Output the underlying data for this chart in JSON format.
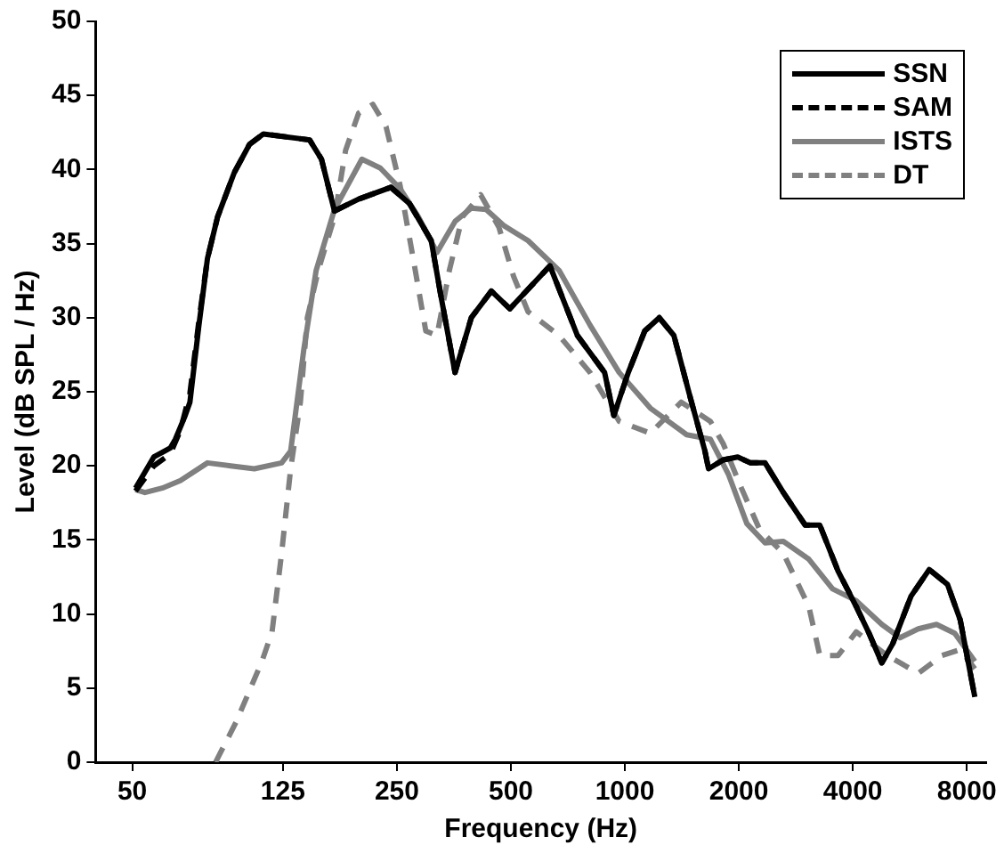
{
  "chart_data": {
    "type": "line",
    "xlabel": "Frequency (Hz)",
    "ylabel": "Level (dB SPL / Hz)",
    "log": "x",
    "xlim": [
      40,
      9000
    ],
    "xticks": [
      50,
      125,
      250,
      500,
      1000,
      2000,
      4000,
      8000
    ],
    "ylim": [
      0,
      50
    ],
    "yticks": [
      0,
      5,
      10,
      15,
      20,
      25,
      30,
      35,
      40,
      45,
      50
    ],
    "grid": false,
    "legend": "top right",
    "marker": "none",
    "series": [
      {
        "name": "SSN",
        "color": "#000000",
        "line_style": "solid",
        "x": [
          51,
          57,
          63,
          65,
          69,
          71,
          75,
          79,
          84,
          93,
          102,
          111,
          147,
          158,
          171,
          198,
          241,
          270,
          308,
          326,
          356,
          393,
          444,
          497,
          634,
          749,
          884,
          935,
          1021,
          1128,
          1233,
          1347,
          1489,
          1627,
          1663,
          1818,
          1986,
          2147,
          2346,
          2621,
          2994,
          3272,
          3656,
          4084,
          4414,
          4770,
          5099,
          5697,
          6364,
          7112,
          7685,
          8399
        ],
        "values": [
          18.5,
          20.6,
          21.2,
          21.8,
          23.4,
          24.3,
          29.5,
          34,
          36.8,
          39.8,
          41.7,
          42.4,
          42,
          40.7,
          37.2,
          38,
          38.8,
          37.7,
          35.2,
          31.6,
          26.3,
          30,
          31.8,
          30.6,
          33.5,
          28.8,
          26.3,
          23.4,
          26.3,
          29.1,
          30,
          28.8,
          24.6,
          21,
          19.8,
          20.4,
          20.6,
          20.2,
          20.2,
          18.2,
          16,
          16,
          12.9,
          10.5,
          8.7,
          6.7,
          8,
          11.2,
          13,
          12,
          9.6,
          4.4
        ]
      },
      {
        "name": "SAM",
        "color": "#000000",
        "line_style": "dashed",
        "x": [
          51,
          57,
          63,
          67,
          71,
          75,
          79,
          84,
          93,
          102,
          111,
          147,
          158,
          171,
          198,
          241,
          270,
          308,
          326,
          356,
          393,
          444,
          497,
          634,
          749,
          884,
          935,
          1021,
          1128,
          1233,
          1347,
          1489,
          1627,
          1663,
          1818,
          1986,
          2147,
          2346,
          2621,
          2994,
          3272,
          3656,
          4084,
          4414,
          4770,
          5099,
          5697,
          6364,
          7112,
          7685,
          8399
        ],
        "values": [
          18.3,
          20,
          20.8,
          22.4,
          24.9,
          29.8,
          34,
          36.8,
          39.8,
          41.7,
          42.4,
          42,
          40.7,
          37.2,
          38,
          38.8,
          37.7,
          35.2,
          31.6,
          26.3,
          30,
          31.8,
          30.6,
          33.5,
          28.8,
          26.3,
          23.4,
          26.3,
          29.1,
          30,
          28.8,
          24.6,
          21,
          19.8,
          20.4,
          20.6,
          20.2,
          20.2,
          18.2,
          16,
          16,
          12.9,
          10.5,
          8.7,
          6.7,
          8,
          11.2,
          13,
          12,
          9.6,
          4.4
        ]
      },
      {
        "name": "ISTS",
        "color": "#808080",
        "line_style": "solid",
        "x": [
          51,
          54,
          60,
          67,
          79,
          91,
          105,
          124,
          131,
          142,
          153,
          171,
          202,
          226,
          255,
          285,
          319,
          356,
          393,
          430,
          480,
          555,
          670,
          809,
          966,
          1167,
          1456,
          1682,
          1879,
          2100,
          2346,
          2621,
          3061,
          3536,
          4084,
          4770,
          5330,
          5955,
          6654,
          7434,
          8399
        ],
        "values": [
          18.4,
          18.2,
          18.5,
          19,
          20.2,
          20,
          19.8,
          20.2,
          21,
          27.9,
          33.2,
          37.3,
          40.7,
          40.1,
          38.7,
          36.8,
          34.4,
          36.5,
          37.4,
          37.3,
          36.2,
          35.2,
          33.2,
          29.5,
          26.3,
          23.9,
          22.1,
          21.8,
          19.4,
          16.1,
          14.8,
          14.9,
          13.7,
          11.7,
          10.9,
          9.3,
          8.4,
          9,
          9.3,
          8.7,
          6.8
        ]
      },
      {
        "name": "DT",
        "color": "#808080",
        "line_style": "dashed",
        "x": [
          83,
          94,
          110,
          117,
          124,
          131,
          139,
          145,
          155,
          171,
          183,
          198,
          216,
          234,
          255,
          276,
          298,
          319,
          344,
          372,
          416,
          465,
          508,
          555,
          670,
          809,
          966,
          1167,
          1409,
          1682,
          1818,
          2031,
          2269,
          2621,
          3061,
          3272,
          3656,
          4084,
          4930,
          5955,
          6878,
          7685,
          8399
        ],
        "values": [
          0,
          2.7,
          6.8,
          8.8,
          14.1,
          19.8,
          24.3,
          30,
          33.2,
          36.8,
          41.3,
          43.8,
          44.4,
          42.9,
          38.9,
          34,
          29.1,
          28.8,
          33.2,
          36.8,
          38.3,
          36.1,
          32.8,
          30.4,
          28.8,
          26.3,
          23,
          22.2,
          24.3,
          23,
          21.5,
          18.5,
          15.7,
          14.1,
          10.5,
          7.2,
          7.2,
          8.8,
          7.2,
          6,
          7.2,
          7.6,
          6.3
        ]
      }
    ]
  }
}
